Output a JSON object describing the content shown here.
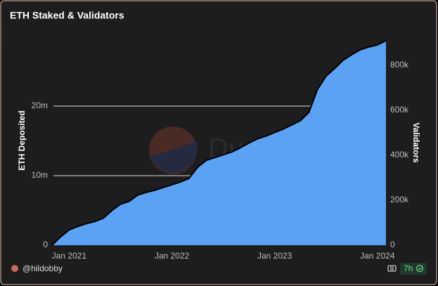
{
  "chart_data": {
    "type": "area",
    "title": "ETH Staked & Validators",
    "author": "@hildobby",
    "watermark": "Dune",
    "refresh": "7h",
    "ylabel": "ETH Deposited",
    "y2label": "Validators",
    "x": [
      "2020-11",
      "2020-12",
      "2021-01",
      "2021-02",
      "2021-03",
      "2021-04",
      "2021-05",
      "2021-06",
      "2021-07",
      "2021-08",
      "2021-09",
      "2021-10",
      "2021-11",
      "2021-12",
      "2022-01",
      "2022-02",
      "2022-03",
      "2022-04",
      "2022-05",
      "2022-06",
      "2022-07",
      "2022-08",
      "2022-09",
      "2022-10",
      "2022-11",
      "2022-12",
      "2023-01",
      "2023-02",
      "2023-03",
      "2023-04",
      "2023-05",
      "2023-06",
      "2023-07",
      "2023-08",
      "2023-09",
      "2023-10",
      "2023-11",
      "2023-12",
      "2024-01",
      "2024-02"
    ],
    "xlim": [
      "2020-11",
      "2024-02"
    ],
    "xticks": [
      {
        "value": "2021-01",
        "label": "Jan 2021"
      },
      {
        "value": "2022-01",
        "label": "Jan 2022"
      },
      {
        "value": "2023-01",
        "label": "Jan 2023"
      },
      {
        "value": "2024-01",
        "label": "Jan 2024"
      }
    ],
    "series": [
      {
        "color": "#5aa2f3",
        "values": [
          0,
          1200000,
          2200000,
          2700000,
          3100000,
          3400000,
          3900000,
          5000000,
          5900000,
          6300000,
          7200000,
          7600000,
          7900000,
          8300000,
          8700000,
          9100000,
          9600000,
          11200000,
          12200000,
          12600000,
          13000000,
          13400000,
          14000000,
          14700000,
          15300000,
          15700000,
          16200000,
          16700000,
          17300000,
          17900000,
          19100000,
          22400000,
          24300000,
          25400000,
          26600000,
          27400000,
          28100000,
          28500000,
          28800000,
          29400000
        ]
      }
    ],
    "ylim": [
      0,
      30000000
    ],
    "yticks": [
      0,
      {
        "value": 10000000,
        "label": "10m"
      },
      {
        "value": 20000000,
        "label": "20m"
      }
    ],
    "y2lim": [
      0,
      928000
    ],
    "y2ticks": [
      0,
      {
        "value": 200000,
        "label": "200k"
      },
      {
        "value": 400000,
        "label": "400k"
      },
      {
        "value": 600000,
        "label": "600k"
      },
      {
        "value": 800000,
        "label": "800k"
      }
    ],
    "grid": true
  }
}
